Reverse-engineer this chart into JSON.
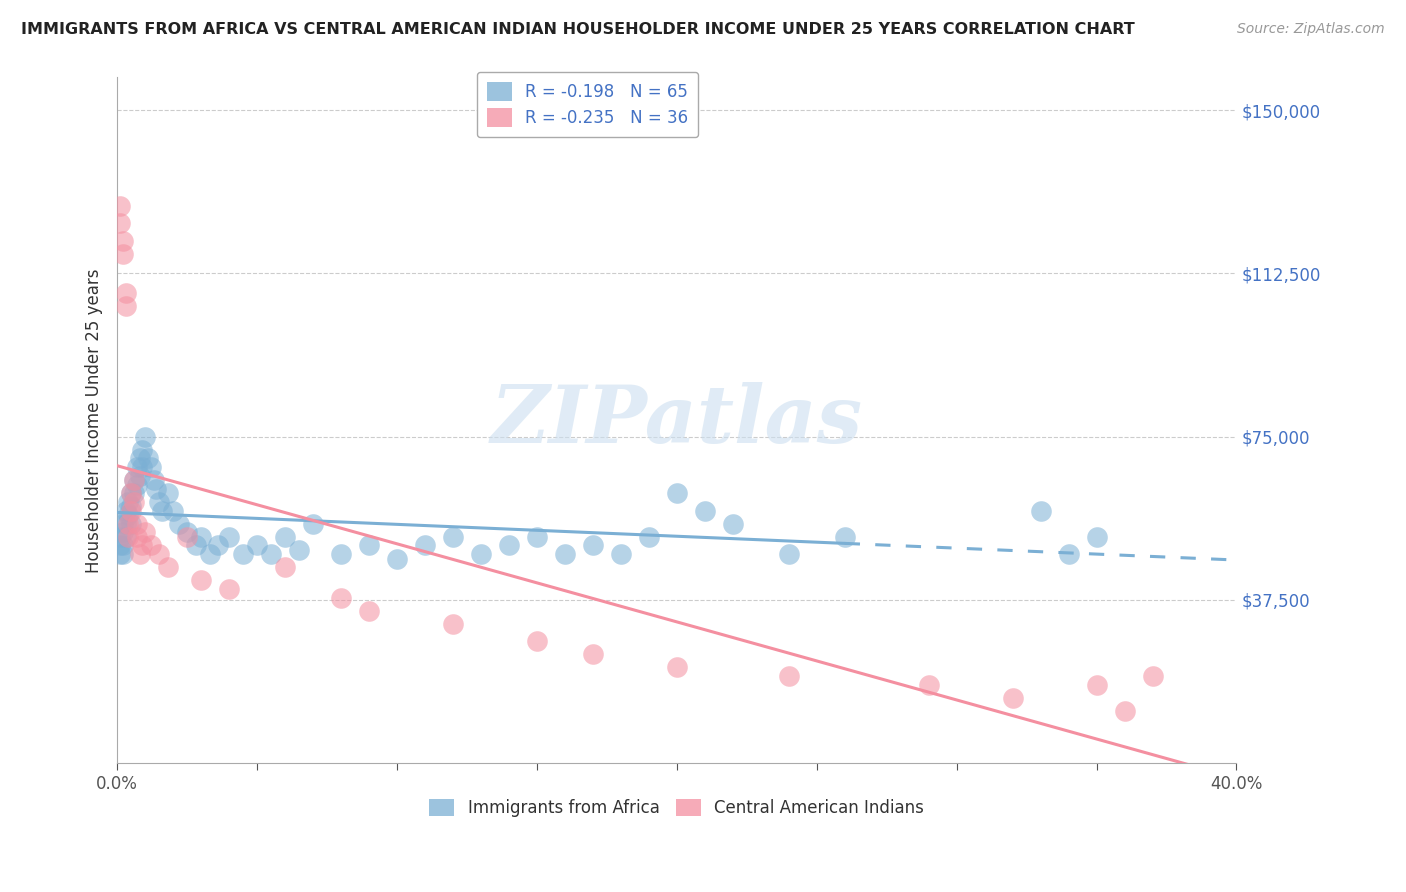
{
  "title": "IMMIGRANTS FROM AFRICA VS CENTRAL AMERICAN INDIAN HOUSEHOLDER INCOME UNDER 25 YEARS CORRELATION CHART",
  "source": "Source: ZipAtlas.com",
  "ylabel": "Householder Income Under 25 years",
  "xlim": [
    0.0,
    0.4
  ],
  "ylim": [
    0,
    157500
  ],
  "xtick_labels_ends": [
    "0.0%",
    "40.0%"
  ],
  "xtick_values_ends": [
    0.0,
    0.4
  ],
  "ytick_values": [
    0,
    37500,
    75000,
    112500,
    150000
  ],
  "ytick_labels": [
    "",
    "$37,500",
    "$75,000",
    "$112,500",
    "$150,000"
  ],
  "legend_top": [
    {
      "label": "R = -0.198   N = 65",
      "color": "#7bafd4"
    },
    {
      "label": "R = -0.235   N = 36",
      "color": "#f48fa0"
    }
  ],
  "legend_bottom": [
    "Immigrants from Africa",
    "Central American Indians"
  ],
  "watermark": "ZIPatlas",
  "africa_color": "#7bafd4",
  "india_color": "#f48fa0",
  "africa_R": -0.198,
  "africa_N": 65,
  "india_R": -0.235,
  "india_N": 36,
  "africa_x": [
    0.001,
    0.001,
    0.001,
    0.002,
    0.002,
    0.002,
    0.002,
    0.003,
    0.003,
    0.003,
    0.004,
    0.004,
    0.005,
    0.005,
    0.005,
    0.006,
    0.006,
    0.007,
    0.007,
    0.008,
    0.008,
    0.009,
    0.009,
    0.01,
    0.011,
    0.012,
    0.013,
    0.014,
    0.015,
    0.016,
    0.018,
    0.02,
    0.022,
    0.025,
    0.028,
    0.03,
    0.033,
    0.036,
    0.04,
    0.045,
    0.05,
    0.055,
    0.06,
    0.065,
    0.07,
    0.08,
    0.09,
    0.1,
    0.11,
    0.12,
    0.13,
    0.14,
    0.15,
    0.16,
    0.17,
    0.18,
    0.19,
    0.2,
    0.21,
    0.22,
    0.24,
    0.26,
    0.33,
    0.34,
    0.35
  ],
  "africa_y": [
    52000,
    50000,
    48000,
    55000,
    53000,
    50000,
    48000,
    58000,
    55000,
    52000,
    60000,
    57000,
    62000,
    59000,
    55000,
    65000,
    62000,
    68000,
    64000,
    70000,
    66000,
    72000,
    68000,
    75000,
    70000,
    68000,
    65000,
    63000,
    60000,
    58000,
    62000,
    58000,
    55000,
    53000,
    50000,
    52000,
    48000,
    50000,
    52000,
    48000,
    50000,
    48000,
    52000,
    49000,
    55000,
    48000,
    50000,
    47000,
    50000,
    52000,
    48000,
    50000,
    52000,
    48000,
    50000,
    48000,
    52000,
    62000,
    58000,
    55000,
    48000,
    52000,
    58000,
    48000,
    52000
  ],
  "india_x": [
    0.001,
    0.001,
    0.002,
    0.002,
    0.003,
    0.003,
    0.004,
    0.004,
    0.005,
    0.005,
    0.006,
    0.006,
    0.007,
    0.007,
    0.008,
    0.009,
    0.01,
    0.012,
    0.015,
    0.018,
    0.025,
    0.03,
    0.04,
    0.06,
    0.08,
    0.09,
    0.12,
    0.15,
    0.17,
    0.2,
    0.24,
    0.29,
    0.32,
    0.35,
    0.36,
    0.37
  ],
  "india_y": [
    128000,
    124000,
    120000,
    117000,
    108000,
    105000,
    55000,
    52000,
    62000,
    58000,
    65000,
    60000,
    55000,
    52000,
    48000,
    50000,
    53000,
    50000,
    48000,
    45000,
    52000,
    42000,
    40000,
    45000,
    38000,
    35000,
    32000,
    28000,
    25000,
    22000,
    20000,
    18000,
    15000,
    18000,
    12000,
    20000
  ]
}
